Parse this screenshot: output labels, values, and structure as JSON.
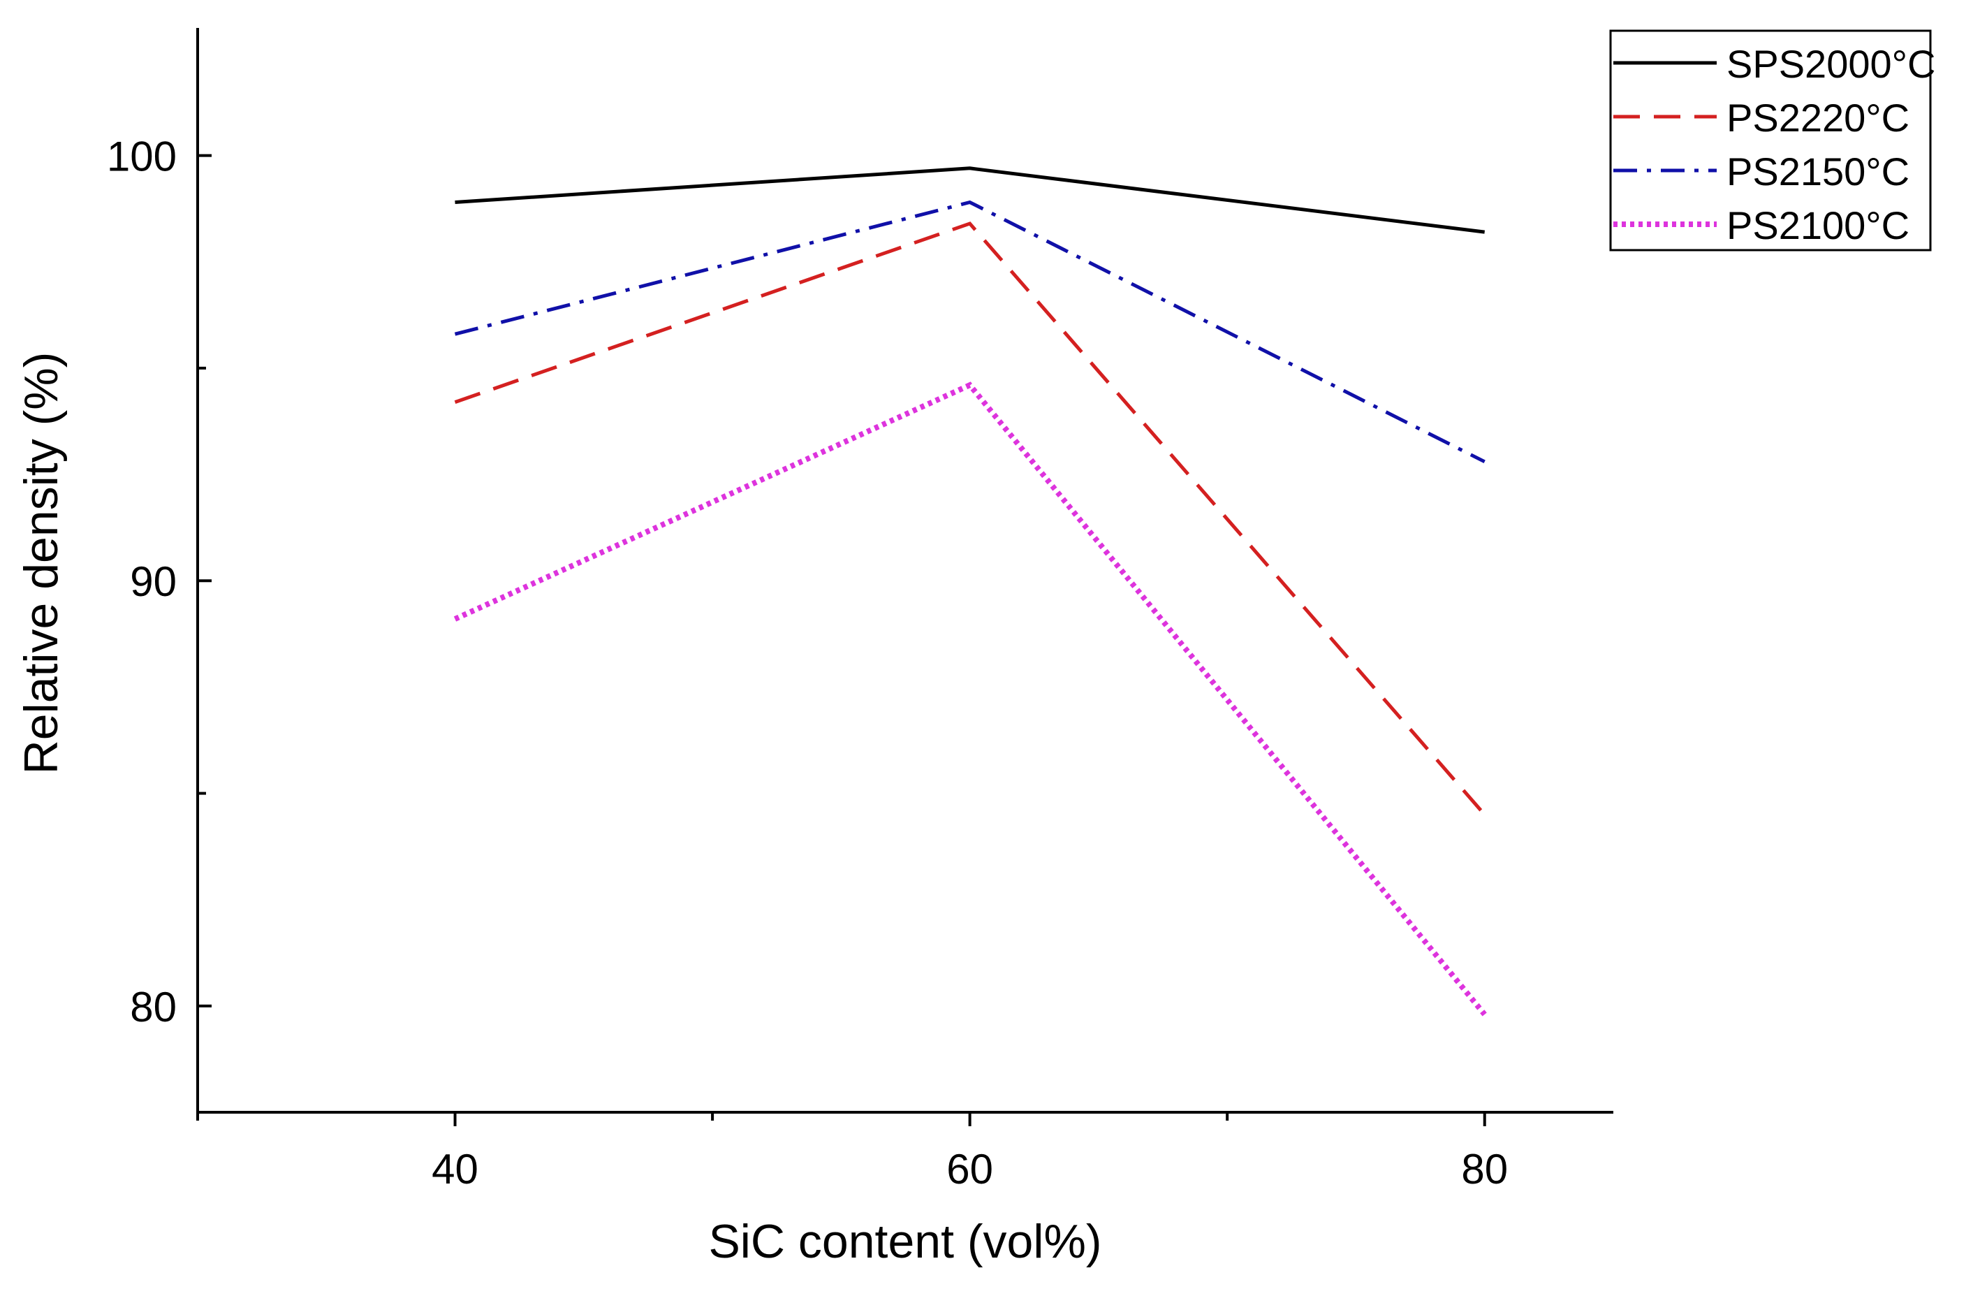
{
  "chart_data": {
    "type": "line",
    "title": "",
    "xlabel": "SiC content (vol%)",
    "ylabel": "Relative density (%)",
    "x": [
      40,
      60,
      80
    ],
    "xlim": [
      30,
      85
    ],
    "ylim": [
      77.5,
      103
    ],
    "xticks_major": [
      40,
      60,
      80
    ],
    "xticks_minor": [
      30,
      50,
      70
    ],
    "yticks_major": [
      80,
      90,
      100
    ],
    "yticks_minor": [
      85,
      95
    ],
    "legend_position": "top-right",
    "series": [
      {
        "name": "SPS2000°C",
        "values": [
          98.9,
          99.7,
          98.2
        ],
        "color": "#000000",
        "dash": "solid"
      },
      {
        "name": "PS2220°C",
        "values": [
          94.2,
          98.4,
          84.5
        ],
        "color": "#d42020",
        "dash": "dashed"
      },
      {
        "name": "PS2150°C",
        "values": [
          95.8,
          98.9,
          92.8
        ],
        "color": "#1010a8",
        "dash": "dash-dot"
      },
      {
        "name": "PS2100°C",
        "values": [
          89.1,
          94.6,
          79.8
        ],
        "color": "#dd33dd",
        "dash": "dotted"
      }
    ]
  }
}
